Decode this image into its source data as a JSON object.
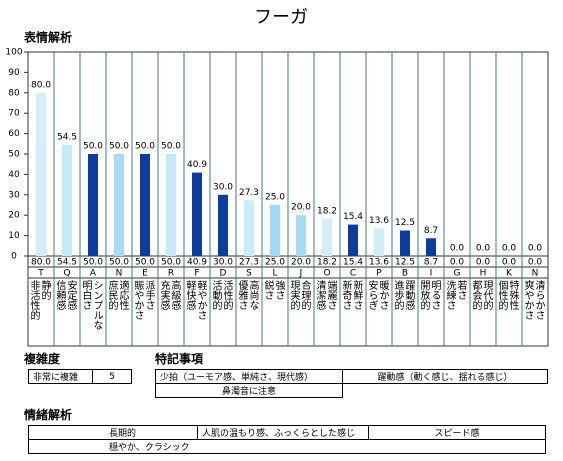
{
  "chart_data": {
    "type": "bar",
    "title": "フーガ",
    "section_title": "表情解析",
    "categories": [
      "T",
      "Q",
      "A",
      "N",
      "E",
      "R",
      "F",
      "D",
      "S",
      "L",
      "J",
      "O",
      "C",
      "P",
      "B",
      "I",
      "G",
      "H",
      "K",
      "N"
    ],
    "category_descriptions": [
      [
        "静的",
        "非活性的"
      ],
      [
        "安定感",
        "信頼感"
      ],
      [
        "シンプルな",
        "明白さ"
      ],
      [
        "適応性",
        "庶民的"
      ],
      [
        "派手さ",
        "賑やかさ"
      ],
      [
        "高級感",
        "充実感"
      ],
      [
        "軽やかさ",
        "軽快感"
      ],
      [
        "活性的",
        "活動的"
      ],
      [
        "高尚な",
        "優雅さ"
      ],
      [
        "強さ",
        "鋭さ"
      ],
      [
        "合理的",
        "現実的"
      ],
      [
        "端麗さ",
        "清潔感"
      ],
      [
        "新鮮さ",
        "新奇さ"
      ],
      [
        "暖かさ",
        "安らぎ"
      ],
      [
        "躍動感",
        "進歩的"
      ],
      [
        "明るさ",
        "開放的"
      ],
      [
        "若さ",
        "洗練さ"
      ],
      [
        "現代的",
        "都会的"
      ],
      [
        "特殊性",
        "個性的"
      ],
      [
        "清らかさ",
        "爽やかさ"
      ]
    ],
    "values": [
      80.0,
      54.5,
      50.0,
      50.0,
      50.0,
      50.0,
      40.9,
      30.0,
      27.3,
      25.0,
      20.0,
      18.2,
      15.4,
      13.6,
      12.5,
      8.7,
      0,
      0,
      0,
      0
    ],
    "value_labels": [
      "80.0",
      "54.5",
      "50.0",
      "50.0",
      "50.0",
      "50.0",
      "40.9",
      "30.0",
      "27.3",
      "25.0",
      "20.0",
      "18.2",
      "15.4",
      "13.6",
      "12.5",
      "8.7",
      "0.0",
      "0.0",
      "0.0",
      "0.0"
    ],
    "colors": [
      "#d2eefa",
      "#c4eaf8",
      "#0d3c9b",
      "#a8dcf2",
      "#0d3c9b",
      "#c4eaf8",
      "#0d3c9b",
      "#0d3c9b",
      "#c8ecfa",
      "#a0daf2",
      "#a8dcf2",
      "#d2eefa",
      "#0d3c9b",
      "#d2eefa",
      "#0d3c9b",
      "#0d3c9b",
      "#c4eaf8",
      "#c4eaf8",
      "#c4eaf8",
      "#c4eaf8"
    ],
    "ylim": [
      0,
      100
    ],
    "yticks": [
      0,
      10,
      20,
      30,
      40,
      50,
      60,
      70,
      80,
      90,
      100
    ]
  },
  "complexity": {
    "title": "複雑度",
    "label": "非常に複雑",
    "value": "5"
  },
  "notes": {
    "title": "特記事項",
    "items": [
      "少拍（ユーモア感、単純さ、現代感）",
      "躍動感（動く感じ、揺れる感じ）",
      "鼻濁音に注意"
    ]
  },
  "emotion": {
    "title": "情緒解析",
    "rows": [
      [
        "長期的",
        "人肌の温もり感、ふっくらとした感じ",
        "スピード感"
      ],
      [
        "穏やか、クラシック"
      ]
    ]
  }
}
